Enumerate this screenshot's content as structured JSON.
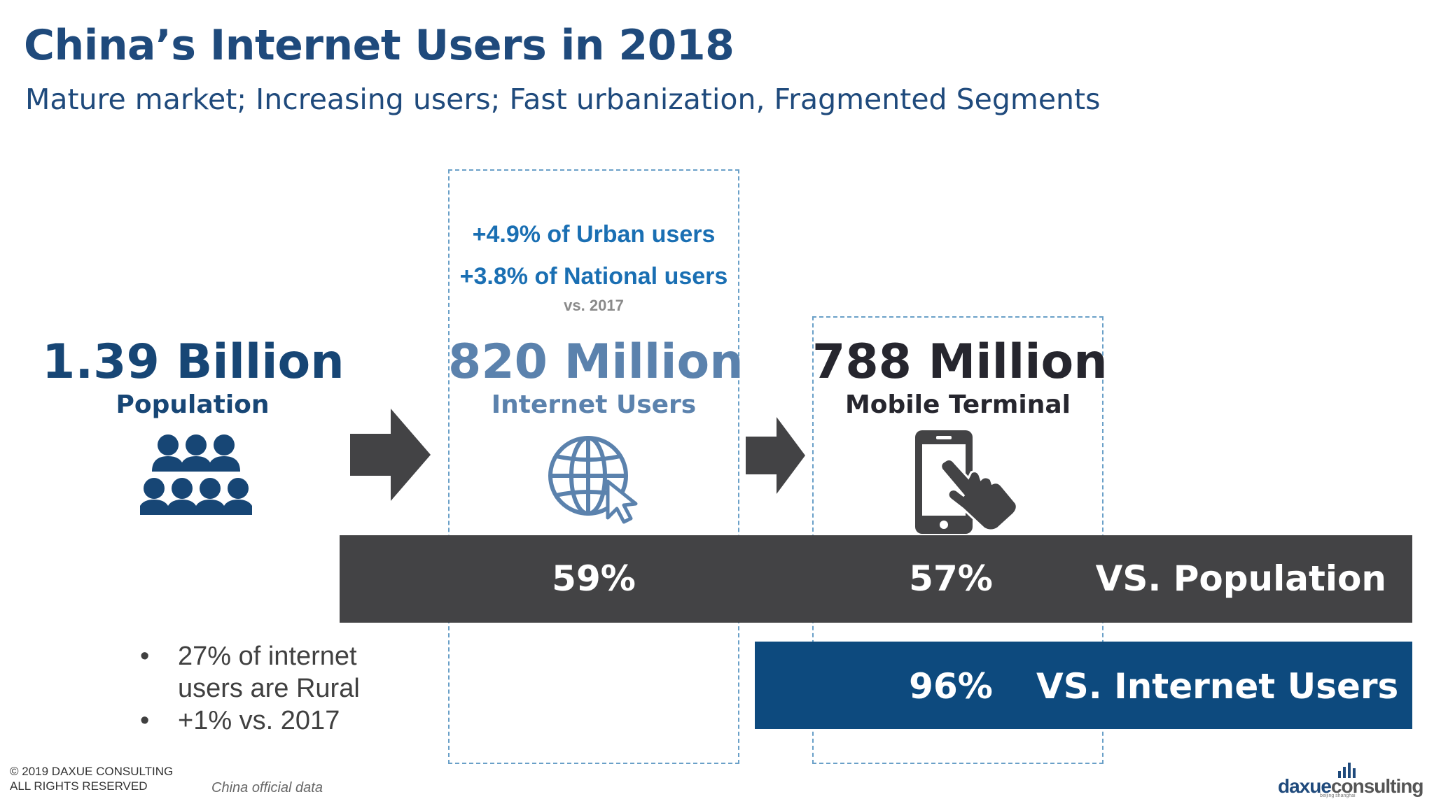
{
  "header": {
    "title": "China’s Internet Users in 2018",
    "subtitle": "Mature market; Increasing users; Fast urbanization, Fragmented Segments"
  },
  "population": {
    "value": "1.39 Billion",
    "label": "Population",
    "icon": "people-group-icon"
  },
  "internet": {
    "growth_urban": "+4.9% of Urban users",
    "growth_national": "+3.8% of National users",
    "vs_year": "vs. 2017",
    "value": "820 Million",
    "label": "Internet Users",
    "icon": "globe-cursor-icon"
  },
  "mobile": {
    "value": "788 Million",
    "label": "Mobile Terminal",
    "icon": "smartphone-tap-icon"
  },
  "bars": {
    "population": {
      "internet_pct": "59%",
      "mobile_pct": "57%",
      "label": "VS. Population"
    },
    "internet": {
      "mobile_pct": "96%",
      "label": "VS. Internet Users"
    }
  },
  "bullets": [
    "27% of internet users are Rural",
    "+1%  vs. 2017"
  ],
  "footer": {
    "copyright_line1": "© 2019 DAXUE CONSULTING",
    "copyright_line2": "ALL RIGHTS RESERVED",
    "source": "China official data",
    "brand_a": "daxue",
    "brand_b": "consulting",
    "brand_tag": "beijing shanghai"
  },
  "colors": {
    "navy": "#1f4a7c",
    "accent_blue": "#1a6fb3",
    "dark_bar": "#434345",
    "blue_bar": "#0d4a7e",
    "light_value": "#5b82ad"
  }
}
